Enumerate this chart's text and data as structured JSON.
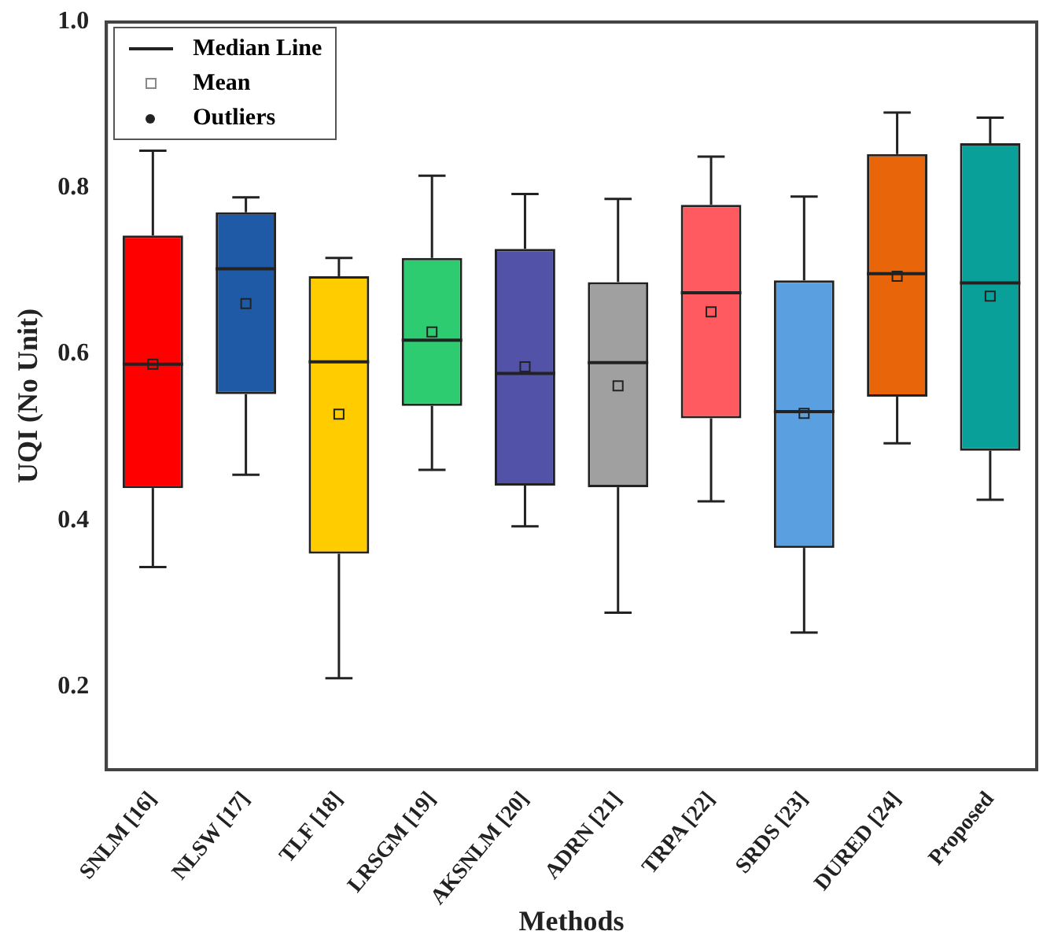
{
  "chart_data": {
    "type": "box",
    "xlabel": "Methods",
    "ylabel": "UQI (No Unit)",
    "categories": [
      "SNLM [16]",
      "NLSW [17]",
      "TLF [18]",
      "LRSGM [19]",
      "AKSNLM [20]",
      "ADRN [21]",
      "TRPA [22]",
      "SRDS [23]",
      "DURED [24]",
      "Proposed"
    ],
    "colors": [
      "#ff0000",
      "#1f5aa6",
      "#ffcc00",
      "#2ecc71",
      "#5252a8",
      "#a0a0a0",
      "#ff5a5f",
      "#5aa0e0",
      "#e8650a",
      "#0aa09a"
    ],
    "boxes": [
      {
        "low": 0.344,
        "q1": 0.439,
        "median": 0.588,
        "q3": 0.743,
        "high": 0.845,
        "mean": 0.588
      },
      {
        "low": 0.455,
        "q1": 0.552,
        "median": 0.703,
        "q3": 0.771,
        "high": 0.789,
        "mean": 0.661
      },
      {
        "low": 0.21,
        "q1": 0.36,
        "median": 0.591,
        "q3": 0.694,
        "high": 0.716,
        "mean": 0.528
      },
      {
        "low": 0.461,
        "q1": 0.538,
        "median": 0.617,
        "q3": 0.716,
        "high": 0.815,
        "mean": 0.627
      },
      {
        "low": 0.393,
        "q1": 0.442,
        "median": 0.577,
        "q3": 0.727,
        "high": 0.793,
        "mean": 0.585
      },
      {
        "low": 0.289,
        "q1": 0.44,
        "median": 0.59,
        "q3": 0.687,
        "high": 0.787,
        "mean": 0.562
      },
      {
        "low": 0.423,
        "q1": 0.523,
        "median": 0.674,
        "q3": 0.78,
        "high": 0.838,
        "mean": 0.651
      },
      {
        "low": 0.265,
        "q1": 0.367,
        "median": 0.531,
        "q3": 0.689,
        "high": 0.79,
        "mean": 0.529
      },
      {
        "low": 0.493,
        "q1": 0.549,
        "median": 0.697,
        "q3": 0.841,
        "high": 0.891,
        "mean": 0.694
      },
      {
        "low": 0.425,
        "q1": 0.484,
        "median": 0.686,
        "q3": 0.854,
        "high": 0.885,
        "mean": 0.67
      }
    ],
    "ylim": [
      0.1,
      1.0
    ],
    "yticks": [
      0.2,
      0.4,
      0.6,
      0.8,
      {
        "value": 1.0,
        "label": "1.0"
      }
    ],
    "annotations": [
      "Median Line",
      "Mean",
      "Outliers"
    ]
  }
}
